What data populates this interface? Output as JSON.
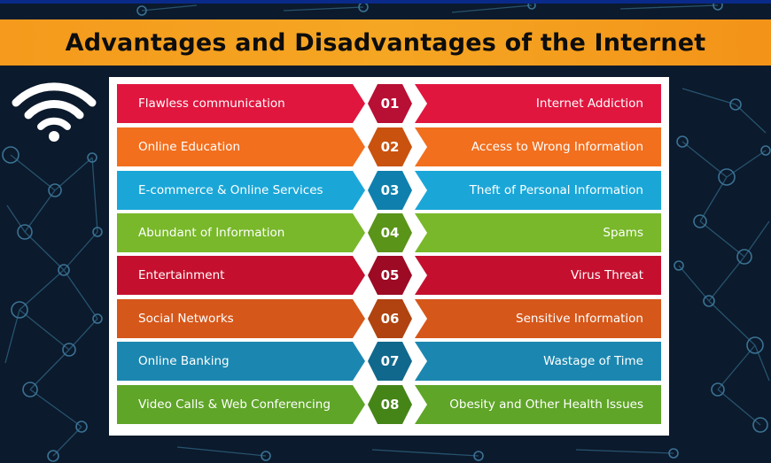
{
  "title": "Advantages and Disadvantages of the Internet",
  "colors": {
    "banner": "#f5a623",
    "background": "#0b1a2c",
    "board": "#ffffff"
  },
  "icons": {
    "wifi": "wifi-icon"
  },
  "rows": [
    {
      "number": "01",
      "advantage": "Flawless communication",
      "disadvantage": "Internet Addiction",
      "bar_color": "#e0163f",
      "hex_color": "#b80f35"
    },
    {
      "number": "02",
      "advantage": "Online Education",
      "disadvantage": "Access to Wrong Information",
      "bar_color": "#f26f1e",
      "hex_color": "#c9520f"
    },
    {
      "number": "03",
      "advantage": "E-commerce & Online Services",
      "disadvantage": "Theft of Personal Information",
      "bar_color": "#1aa7d8",
      "hex_color": "#0f80ad"
    },
    {
      "number": "04",
      "advantage": "Abundant of Information",
      "disadvantage": "Spams",
      "bar_color": "#78b82a",
      "hex_color": "#5a9418"
    },
    {
      "number": "05",
      "advantage": "Entertainment",
      "disadvantage": "Virus Threat",
      "bar_color": "#c4102e",
      "hex_color": "#9c0a24"
    },
    {
      "number": "06",
      "advantage": "Social Networks",
      "disadvantage": "Sensitive Information",
      "bar_color": "#d6571a",
      "hex_color": "#b0430f"
    },
    {
      "number": "07",
      "advantage": "Online Banking",
      "disadvantage": "Wastage of Time",
      "bar_color": "#1b87b0",
      "hex_color": "#10698c"
    },
    {
      "number": "08",
      "advantage": "Video Calls & Web Conferencing",
      "disadvantage": "Obesity and Other Health Issues",
      "bar_color": "#5fa528",
      "hex_color": "#458518"
    }
  ]
}
